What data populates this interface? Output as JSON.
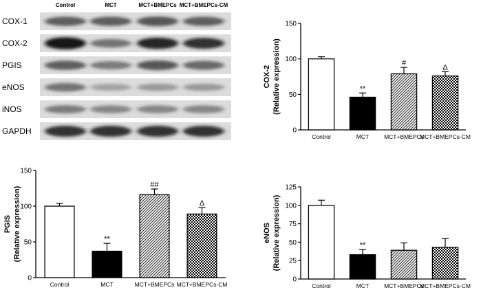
{
  "western_blot": {
    "lanes": [
      "Control",
      "MCT",
      "MCT+BMEPCs",
      "MCT+BMEPCs-CM"
    ],
    "rows": [
      {
        "label": "COX-1",
        "band_intensity": [
          0.55,
          0.55,
          0.6,
          0.55
        ]
      },
      {
        "label": "COX-2",
        "band_intensity": [
          0.95,
          0.45,
          0.85,
          0.8
        ]
      },
      {
        "label": "PGIS",
        "band_intensity": [
          0.55,
          0.4,
          0.6,
          0.5
        ]
      },
      {
        "label": "eNOS",
        "band_intensity": [
          0.45,
          0.2,
          0.25,
          0.25
        ]
      },
      {
        "label": "iNOS",
        "band_intensity": [
          0.4,
          0.35,
          0.35,
          0.35
        ]
      },
      {
        "label": "GAPDH",
        "band_intensity": [
          0.8,
          0.8,
          0.8,
          0.8
        ]
      }
    ]
  },
  "chart_data": [
    {
      "id": "cox2",
      "type": "bar",
      "categories": [
        "Control",
        "MCT",
        "MCT+BMEPCs",
        "MCT+BMEPCs-CM"
      ],
      "values": [
        100,
        46,
        79,
        76
      ],
      "errors": [
        3,
        6,
        9,
        6
      ],
      "annotations": [
        "",
        "**",
        "#",
        "Δ"
      ],
      "ylabel_lines": [
        "COX-2",
        "(Relative expression)"
      ],
      "ylim": [
        0,
        150
      ],
      "yticks": [
        0,
        50,
        100,
        150
      ],
      "bar_patterns": [
        "white",
        "black",
        "diagonal-hatch",
        "checkerboard"
      ]
    },
    {
      "id": "pgis",
      "type": "bar",
      "categories": [
        "Control",
        "MCT",
        "MCT+BMEPCs",
        "MCT+BMEPCs-CM"
      ],
      "values": [
        100,
        37,
        116,
        89
      ],
      "errors": [
        4,
        11,
        8,
        9
      ],
      "annotations": [
        "",
        "**",
        "##",
        "Δ"
      ],
      "ylabel_lines": [
        "PGIS",
        "(Relative expression)"
      ],
      "ylim": [
        0,
        150
      ],
      "yticks": [
        0,
        50,
        100,
        150
      ],
      "bar_patterns": [
        "white",
        "black",
        "diagonal-hatch",
        "checkerboard"
      ]
    },
    {
      "id": "enos",
      "type": "bar",
      "categories": [
        "Control",
        "MCT",
        "MCT+BMEPCs",
        "MCT+BMEPCs-CM"
      ],
      "values": [
        100,
        33,
        39,
        43
      ],
      "errors": [
        7,
        7,
        10,
        12
      ],
      "annotations": [
        "",
        "**",
        "",
        ""
      ],
      "ylabel_lines": [
        "eNOS",
        "(Relative expression)"
      ],
      "ylim": [
        0,
        125
      ],
      "yticks": [
        0,
        25,
        50,
        75,
        100,
        125
      ],
      "bar_patterns": [
        "white",
        "black",
        "diagonal-hatch",
        "checkerboard"
      ]
    }
  ]
}
